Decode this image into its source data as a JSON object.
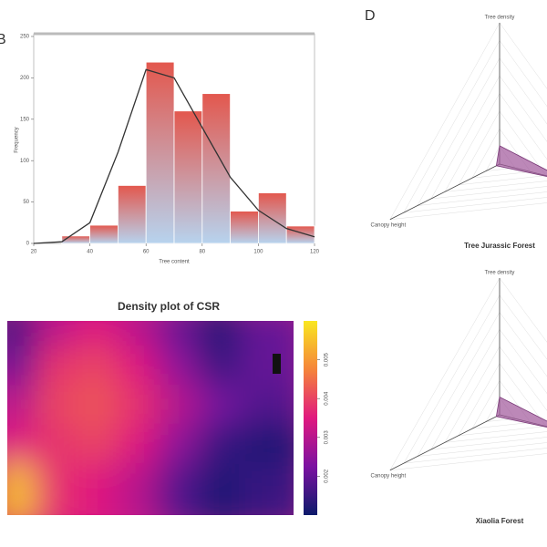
{
  "chart_data": [
    {
      "type": "histogram",
      "panel_label": "B",
      "x_label": "Tree content",
      "y_label": "Frequency",
      "bins": [
        30,
        40,
        50,
        60,
        70,
        80,
        90,
        100,
        110,
        120
      ],
      "values": [
        9,
        22,
        70,
        219,
        160,
        181,
        39,
        61,
        21
      ],
      "color": "#e3574d",
      "color_bottom": "#b7d3ee",
      "curve": {
        "x": [
          20,
          30,
          40,
          50,
          60,
          70,
          80,
          90,
          100,
          110,
          120
        ],
        "values": [
          0,
          2,
          25,
          110,
          210,
          200,
          140,
          80,
          40,
          18,
          8
        ],
        "color": "#333333"
      },
      "xlim": [
        20,
        120
      ],
      "xticks": [
        20,
        40,
        60,
        80,
        100,
        120
      ],
      "ylim": [
        0,
        250
      ],
      "yticks": [
        0,
        50,
        100,
        150,
        200,
        250
      ]
    },
    {
      "type": "heatmap",
      "title": "Density plot of CSR",
      "z": [
        [
          0.0015,
          0.003,
          0.0035,
          0.003,
          0.002,
          0.0012,
          0.002
        ],
        [
          0.002,
          0.0038,
          0.004,
          0.0035,
          0.0025,
          0.0015,
          0.002
        ],
        [
          0.003,
          0.004,
          0.0042,
          0.0038,
          0.003,
          0.0022,
          0.0018
        ],
        [
          0.0035,
          0.0038,
          0.004,
          0.0035,
          0.0025,
          0.0015,
          0.0012
        ],
        [
          0.0055,
          0.0038,
          0.0035,
          0.003,
          0.0018,
          0.0012,
          0.0015
        ]
      ],
      "zlim": [
        0.001,
        0.006
      ],
      "zticks": [
        0.002,
        0.003,
        0.004,
        0.005
      ]
    },
    {
      "type": "radar",
      "panel_label": "D",
      "title": "Tree Jurassic Forest",
      "axes": [
        "Tree density",
        "Canopy height",
        null
      ],
      "values": [
        0.13,
        0.03,
        0.55
      ],
      "rlim": [
        0,
        1
      ],
      "color": "#a0559a"
    },
    {
      "type": "radar",
      "title": "Xiaolia Forest",
      "axes": [
        "Tree density",
        "Canopy height",
        null
      ],
      "values": [
        0.13,
        0.03,
        0.55
      ],
      "rlim": [
        0,
        1
      ],
      "color": "#a0559a"
    }
  ]
}
